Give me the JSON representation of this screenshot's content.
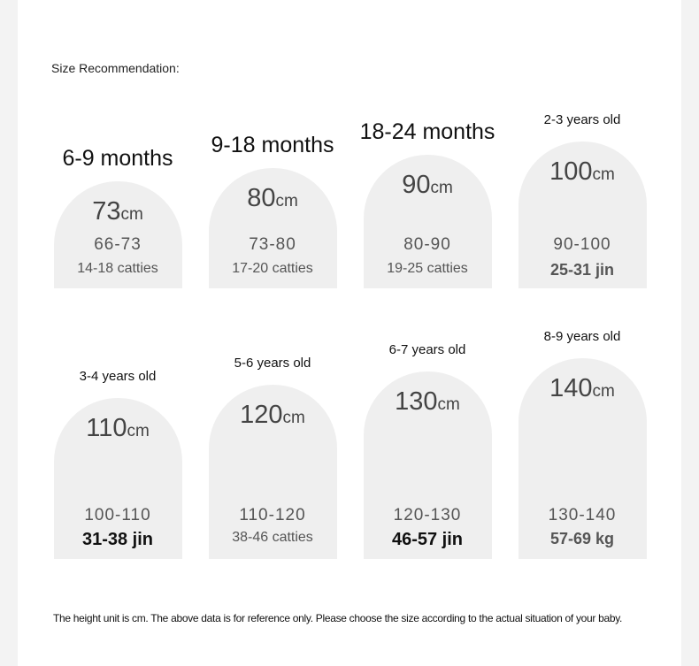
{
  "header": {
    "title": "Size Recommendation:"
  },
  "cards": [
    {
      "age": "6-9 months",
      "height": "73",
      "unit": "cm",
      "range": "66-73",
      "weight": "14-18 catties"
    },
    {
      "age": "9-18 months",
      "height": "80",
      "unit": "cm",
      "range": "73-80",
      "weight": "17-20 catties"
    },
    {
      "age": "18-24 months",
      "height": "90",
      "unit": "cm",
      "range": "80-90",
      "weight": "19-25 catties"
    },
    {
      "age": "2-3 years old",
      "height": "100",
      "unit": "cm",
      "range": "90-100",
      "weight": "25-31 jin"
    },
    {
      "age": "3-4 years old",
      "height": "110",
      "unit": "cm",
      "range": "100-110",
      "weight": "31-38 jin"
    },
    {
      "age": "5-6 years old",
      "height": "120",
      "unit": "cm",
      "range": "110-120",
      "weight": "38-46 catties"
    },
    {
      "age": "6-7 years old",
      "height": "130",
      "unit": "cm",
      "range": "120-130",
      "weight": "46-57 jin"
    },
    {
      "age": "8-9 years old",
      "height": "140",
      "unit": "cm",
      "range": "130-140",
      "weight": "57-69 kg"
    }
  ],
  "footer": {
    "note": "The height unit is cm. The above data is for reference only. Please choose the size according to the actual situation of your baby."
  }
}
